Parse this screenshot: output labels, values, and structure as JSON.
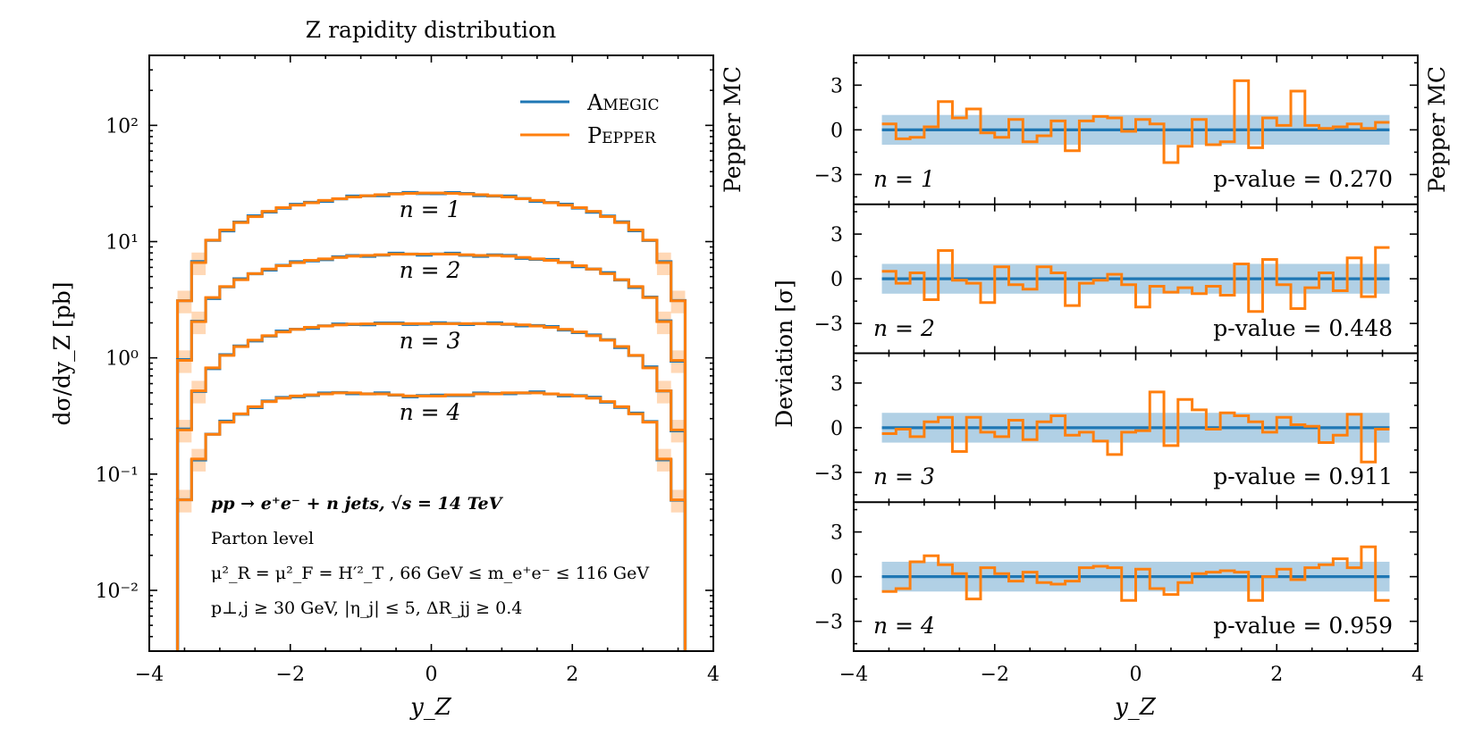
{
  "chart_data": [
    {
      "type": "line",
      "title": "Z rapidity distribution",
      "xlabel": "y_Z",
      "ylabel": "dσ/dy_Z [pb]",
      "yscale": "log",
      "xlim": [
        -4,
        4
      ],
      "ylim": [
        0.003,
        400
      ],
      "xticks": [
        -4,
        -2,
        0,
        2,
        4
      ],
      "xtick_labels": [
        "−4",
        "−2",
        "0",
        "2",
        "4"
      ],
      "yticks": [
        0.01,
        0.1,
        1,
        10,
        100
      ],
      "ytick_labels": [
        "10⁻²",
        "10⁻¹",
        "10⁰",
        "10¹",
        "10²"
      ],
      "side_label": "Pepper MC",
      "legend": {
        "placement": "top-right",
        "entries": [
          "Amegic",
          "Pepper"
        ]
      },
      "series_colors": {
        "Amegic": "#1f77b4",
        "Pepper": "#ff7f0e"
      },
      "annotations": {
        "process": "pp → e⁺e⁻ + n jets, √s = 14 TeV",
        "level": "Parton level",
        "scales": "μ²_R = μ²_F = H′²_T , 66 GeV ≤ m_e⁺e⁻ ≤ 116 GeV",
        "cuts": "p⊥,j ≥ 30 GeV, |η_j| ≤ 5, ΔR_jj ≥ 0.4"
      },
      "bin_edges": [
        -3.6,
        -3.4,
        -3.2,
        -3.0,
        -2.8,
        -2.6,
        -2.4,
        -2.2,
        -2.0,
        -1.8,
        -1.6,
        -1.4,
        -1.2,
        -1.0,
        -0.8,
        -0.6,
        -0.4,
        -0.2,
        0.0,
        0.2,
        0.4,
        0.6,
        0.8,
        1.0,
        1.2,
        1.4,
        1.6,
        1.8,
        2.0,
        2.2,
        2.4,
        2.6,
        2.8,
        3.0,
        3.2,
        3.4,
        3.6
      ],
      "series": [
        {
          "n": 1,
          "label": "n = 1",
          "values": [
            3.1,
            6.6,
            10.3,
            12.6,
            14.6,
            16.4,
            18.2,
            19.6,
            20.6,
            21.6,
            22.6,
            23.4,
            24.2,
            24.8,
            25.3,
            25.7,
            26.0,
            26.2,
            26.2,
            26.0,
            25.7,
            25.3,
            24.8,
            24.2,
            23.4,
            22.6,
            21.6,
            20.6,
            19.6,
            18.2,
            16.4,
            14.6,
            12.6,
            10.3,
            6.6,
            3.1
          ]
        },
        {
          "n": 2,
          "label": "n = 2",
          "values": [
            0.95,
            2.05,
            3.3,
            4.1,
            4.7,
            5.3,
            5.8,
            6.2,
            6.6,
            6.9,
            7.1,
            7.3,
            7.5,
            7.6,
            7.7,
            7.8,
            7.8,
            7.8,
            7.8,
            7.8,
            7.7,
            7.6,
            7.6,
            7.5,
            7.3,
            7.1,
            6.9,
            6.6,
            6.2,
            5.8,
            5.3,
            4.7,
            4.1,
            3.3,
            2.05,
            0.95
          ]
        },
        {
          "n": 3,
          "label": "n = 3",
          "values": [
            0.24,
            0.52,
            0.82,
            1.05,
            1.25,
            1.42,
            1.55,
            1.67,
            1.76,
            1.83,
            1.88,
            1.92,
            1.95,
            1.96,
            1.97,
            1.97,
            1.97,
            1.97,
            1.97,
            1.97,
            1.97,
            1.97,
            1.96,
            1.95,
            1.92,
            1.88,
            1.83,
            1.76,
            1.67,
            1.55,
            1.42,
            1.25,
            1.05,
            0.82,
            0.52,
            0.24
          ]
        },
        {
          "n": 4,
          "label": "n = 4",
          "values": [
            0.06,
            0.135,
            0.22,
            0.28,
            0.33,
            0.38,
            0.42,
            0.45,
            0.47,
            0.48,
            0.49,
            0.5,
            0.5,
            0.49,
            0.49,
            0.48,
            0.47,
            0.47,
            0.47,
            0.48,
            0.48,
            0.49,
            0.49,
            0.5,
            0.5,
            0.5,
            0.49,
            0.48,
            0.47,
            0.45,
            0.42,
            0.38,
            0.33,
            0.28,
            0.135,
            0.06
          ]
        }
      ]
    },
    {
      "type": "line",
      "ylabel": "Deviation [σ]",
      "xlabel": "y_Z",
      "xlim": [
        -4,
        4
      ],
      "ylim": [
        -5,
        5
      ],
      "xticks": [
        -4,
        -2,
        0,
        2,
        4
      ],
      "xtick_labels": [
        "−4",
        "−2",
        "0",
        "2",
        "4"
      ],
      "yticks": [
        -3,
        0,
        3
      ],
      "ytick_labels": [
        "−3",
        "0",
        "3"
      ],
      "side_label": "Pepper MC",
      "band": [
        -1,
        1
      ],
      "bin_edges": [
        -3.6,
        -3.4,
        -3.2,
        -3.0,
        -2.8,
        -2.6,
        -2.4,
        -2.2,
        -2.0,
        -1.8,
        -1.6,
        -1.4,
        -1.2,
        -1.0,
        -0.8,
        -0.6,
        -0.4,
        -0.2,
        0.0,
        0.2,
        0.4,
        0.6,
        0.8,
        1.0,
        1.2,
        1.4,
        1.6,
        1.8,
        2.0,
        2.2,
        2.4,
        2.6,
        2.8,
        3.0,
        3.2,
        3.4,
        3.6
      ],
      "panels": [
        {
          "n_label": "n = 1",
          "pvalue_label": "p-value = 0.270",
          "deviations": [
            0.4,
            -0.6,
            -0.5,
            0.2,
            1.9,
            0.8,
            1.4,
            -0.2,
            -0.5,
            0.7,
            -0.8,
            -0.4,
            0.6,
            -1.4,
            0.6,
            0.9,
            0.8,
            -0.1,
            0.7,
            0.4,
            -2.2,
            -1.1,
            0.7,
            -1.0,
            -0.8,
            3.3,
            -1.2,
            0.8,
            0.3,
            2.6,
            0.3,
            0.1,
            0.2,
            0.4,
            0.1,
            0.5
          ]
        },
        {
          "n_label": "n = 2",
          "pvalue_label": "p-value = 0.448",
          "deviations": [
            0.5,
            -0.3,
            0.4,
            -1.4,
            1.9,
            -0.1,
            -0.3,
            -1.6,
            0.8,
            -0.4,
            -0.7,
            0.8,
            0.4,
            -1.8,
            -0.3,
            -0.1,
            0.3,
            -0.4,
            -1.9,
            -0.5,
            -0.9,
            -0.6,
            -1.0,
            -0.5,
            -1.1,
            1.0,
            -2.2,
            1.3,
            -0.4,
            -2.0,
            -0.6,
            0.4,
            -0.8,
            1.4,
            -1.2,
            2.1
          ]
        },
        {
          "n_label": "n = 3",
          "pvalue_label": "p-value = 0.911",
          "deviations": [
            -0.4,
            -0.1,
            -0.6,
            0.4,
            0.7,
            -1.6,
            0.7,
            -0.3,
            -0.6,
            0.5,
            -0.8,
            0.4,
            0.8,
            -0.5,
            -0.3,
            -0.9,
            -1.8,
            -0.3,
            -0.2,
            2.4,
            -1.2,
            1.9,
            1.2,
            -0.1,
            1.0,
            0.8,
            0.4,
            -0.3,
            0.7,
            0.2,
            0.1,
            -1.0,
            -0.5,
            0.9,
            -2.3,
            -0.1
          ]
        },
        {
          "n_label": "n = 4",
          "pvalue_label": "p-value = 0.959",
          "deviations": [
            -1.0,
            -0.8,
            1.0,
            1.4,
            0.8,
            0.2,
            -1.5,
            0.6,
            0.2,
            -0.3,
            0.3,
            -0.4,
            -0.5,
            -0.3,
            0.6,
            0.7,
            0.6,
            -1.6,
            0.5,
            -0.8,
            -1.2,
            -0.4,
            0.2,
            0.3,
            0.4,
            0.3,
            -1.6,
            0.0,
            0.5,
            -0.2,
            0.6,
            0.8,
            1.2,
            0.6,
            2.0,
            -1.6
          ]
        }
      ]
    }
  ]
}
